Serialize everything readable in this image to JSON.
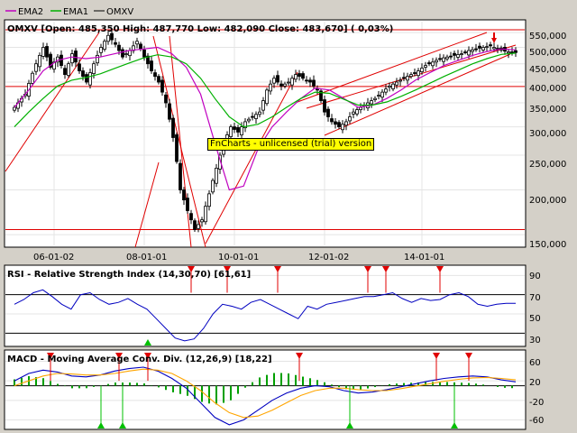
{
  "legend": {
    "items": [
      {
        "label": "EMA2",
        "color": "#c000c0"
      },
      {
        "label": "EMA1",
        "color": "#00b000"
      },
      {
        "label": "OMXV",
        "color": "#000000"
      }
    ]
  },
  "watermark": "FnCharts - unlicensed (trial) version",
  "chart_data": [
    {
      "type": "candlestick",
      "title": "OMXV [Open: 485,350  High: 487,770  Low: 482,090  Close: 483,670] ( 0,03%)",
      "x_tick_labels": [
        "06-01-02",
        "08-01-01",
        "10-01-01",
        "12-01-02",
        "14-01-01"
      ],
      "y_tick_labels": [
        "550,000",
        "500,000",
        "450,000",
        "400,000",
        "350,000",
        "300,000",
        "250,000",
        "200,000",
        "150,000"
      ],
      "y_scale": "log",
      "ylim": [
        140000,
        590000
      ],
      "horizontal_levels": [
        560000,
        389000,
        155000
      ],
      "close_path": [
        [
          0,
          340000
        ],
        [
          3,
          370000
        ],
        [
          6,
          450000
        ],
        [
          8,
          500000
        ],
        [
          10,
          440000
        ],
        [
          12,
          470000
        ],
        [
          14,
          420000
        ],
        [
          16,
          480000
        ],
        [
          18,
          430000
        ],
        [
          20,
          400000
        ],
        [
          22,
          450000
        ],
        [
          24,
          500000
        ],
        [
          26,
          540000
        ],
        [
          28,
          510000
        ],
        [
          30,
          470000
        ],
        [
          32,
          490000
        ],
        [
          34,
          520000
        ],
        [
          36,
          470000
        ],
        [
          38,
          430000
        ],
        [
          40,
          400000
        ],
        [
          42,
          350000
        ],
        [
          44,
          280000
        ],
        [
          46,
          200000
        ],
        [
          48,
          175000
        ],
        [
          50,
          155000
        ],
        [
          52,
          165000
        ],
        [
          54,
          195000
        ],
        [
          56,
          230000
        ],
        [
          58,
          270000
        ],
        [
          60,
          300000
        ],
        [
          62,
          290000
        ],
        [
          64,
          310000
        ],
        [
          66,
          320000
        ],
        [
          68,
          330000
        ],
        [
          70,
          380000
        ],
        [
          72,
          410000
        ],
        [
          74,
          390000
        ],
        [
          76,
          400000
        ],
        [
          78,
          420000
        ],
        [
          80,
          410000
        ],
        [
          82,
          400000
        ],
        [
          84,
          380000
        ],
        [
          86,
          330000
        ],
        [
          88,
          310000
        ],
        [
          90,
          300000
        ],
        [
          92,
          310000
        ],
        [
          94,
          330000
        ],
        [
          96,
          340000
        ],
        [
          98,
          350000
        ],
        [
          100,
          360000
        ],
        [
          102,
          375000
        ],
        [
          104,
          390000
        ],
        [
          106,
          400000
        ],
        [
          108,
          410000
        ],
        [
          110,
          420000
        ],
        [
          112,
          430000
        ],
        [
          114,
          445000
        ],
        [
          116,
          455000
        ],
        [
          118,
          465000
        ],
        [
          120,
          470000
        ],
        [
          122,
          475000
        ],
        [
          124,
          480000
        ],
        [
          126,
          490000
        ],
        [
          128,
          495000
        ],
        [
          130,
          500000
        ],
        [
          132,
          505000
        ],
        [
          134,
          495000
        ],
        [
          136,
          488000
        ],
        [
          138,
          483670
        ]
      ],
      "series": [
        {
          "name": "EMA2",
          "color": "#c000c0",
          "values": [
            340000,
            380000,
            430000,
            460000,
            470000,
            465000,
            470000,
            480000,
            490000,
            495000,
            500000,
            480000,
            440000,
            370000,
            270000,
            200000,
            205000,
            260000,
            300000,
            330000,
            360000,
            385000,
            380000,
            360000,
            340000,
            345000,
            360000,
            380000,
            405000,
            425000,
            445000,
            460000,
            475000,
            487000,
            495000,
            492000
          ]
        },
        {
          "name": "EMA1",
          "color": "#00b000",
          "values": [
            300000,
            330000,
            360000,
            390000,
            405000,
            412000,
            422000,
            437000,
            452000,
            467000,
            477000,
            470000,
            450000,
            410000,
            360000,
            320000,
            300000,
            305000,
            320000,
            340000,
            360000,
            375000,
            372000,
            358000,
            345000,
            345000,
            352000,
            365000,
            380000,
            397000,
            415000,
            432000,
            450000,
            465000,
            478000,
            482000
          ]
        }
      ]
    },
    {
      "type": "line",
      "title": "RSI - Relative Strength Index (14,30,70) [61,61]",
      "y_tick_labels": [
        "90",
        "70",
        "50",
        "30"
      ],
      "ylim": [
        20,
        95
      ],
      "levels": [
        70,
        30
      ],
      "series": [
        {
          "name": "RSI",
          "color": "#0000c0",
          "values": [
            60,
            65,
            72,
            75,
            68,
            60,
            55,
            70,
            72,
            65,
            60,
            62,
            66,
            60,
            55,
            45,
            35,
            25,
            22,
            24,
            35,
            50,
            60,
            58,
            55,
            62,
            65,
            60,
            55,
            50,
            45,
            58,
            55,
            60,
            62,
            64,
            66,
            68,
            68,
            70,
            72,
            66,
            62,
            66,
            64,
            65,
            70,
            72,
            68,
            60,
            58,
            60,
            61,
            61
          ]
        }
      ],
      "sell_signals": [
        49,
        59,
        73,
        98,
        103,
        118
      ],
      "buy_signals": [
        37
      ]
    },
    {
      "type": "line",
      "title": "MACD - Moving Average Conv. Div. (12,26,9) [18,22]",
      "y_tick_labels": [
        "60",
        "20",
        "-20",
        "-60"
      ],
      "ylim": [
        -72,
        72
      ],
      "series": [
        {
          "name": "MACD",
          "color": "#0000c0",
          "values": [
            20,
            35,
            42,
            38,
            30,
            28,
            32,
            40,
            45,
            48,
            40,
            25,
            5,
            -25,
            -55,
            -70,
            -60,
            -40,
            -20,
            -5,
            5,
            10,
            8,
            0,
            -5,
            -3,
            2,
            8,
            14,
            20,
            25,
            28,
            30,
            28,
            22,
            18
          ]
        },
        {
          "name": "Signal",
          "color": "#ffa500",
          "values": [
            10,
            20,
            30,
            35,
            34,
            32,
            32,
            35,
            40,
            44,
            42,
            35,
            20,
            0,
            -25,
            -45,
            -55,
            -52,
            -40,
            -25,
            -10,
            0,
            5,
            5,
            2,
            0,
            0,
            4,
            9,
            14,
            19,
            23,
            26,
            27,
            25,
            22
          ]
        }
      ],
      "histogram_color": "#00a000",
      "sell_signals": [
        10,
        29,
        37,
        79,
        117,
        126
      ],
      "buy_signals": [
        24,
        30,
        93,
        122
      ]
    }
  ]
}
